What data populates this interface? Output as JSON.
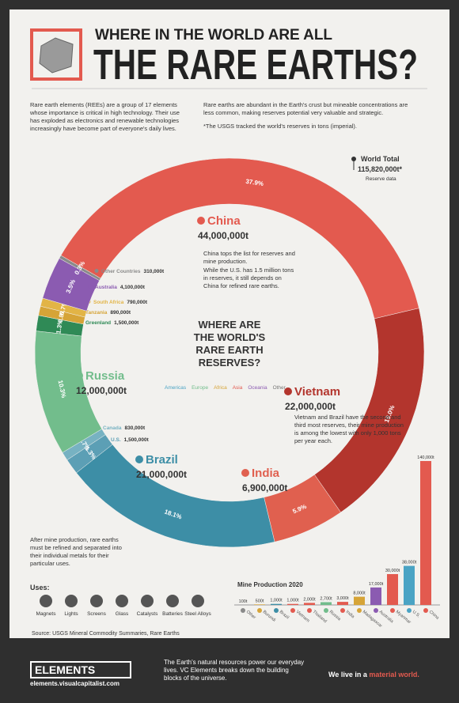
{
  "header": {
    "kicker": "WHERE IN THE WORLD ARE ALL",
    "title": "THE RARE EARTHS?"
  },
  "intro": {
    "left": "Rare earth elements (REEs) are a group of 17 elements whose importance is critical in high technology. Their use has exploded as electronics and renewable technologies increasingly have become part of everyone's daily lives.",
    "right": "Rare earths are abundant in the Earth's crust but mineable concentrations are less common, making reserves potential very valuable and strategic.",
    "note": "*The USGS tracked the world's reserves in tons (imperial)."
  },
  "chart_data": [
    {
      "type": "pie",
      "title": "WHERE ARE THE WORLD'S RARE EARTH RESERVES?",
      "total": {
        "name": "World Total",
        "value": 115820000,
        "label": "115,820,000t*",
        "note": "Reserve data"
      },
      "categories": [
        "China",
        "Vietnam",
        "India",
        "Brazil",
        "U.S.",
        "Canada",
        "Russia",
        "Greenland",
        "Tanzania",
        "South Africa",
        "Australia",
        "Other Countries"
      ],
      "values": [
        44000000,
        22000000,
        6900000,
        21000000,
        1500000,
        830000,
        12000000,
        1500000,
        890000,
        790000,
        4100000,
        310000
      ],
      "value_labels": [
        "44,000,000t",
        "22,000,000t",
        "6,900,000t",
        "21,000,000t",
        "1,500,000t",
        "830,000t",
        "12,000,000t",
        "1,500,000t",
        "890,000t",
        "790,000t",
        "4,100,000t",
        "310,000t"
      ],
      "shares": [
        {
          "value": 37.9,
          "label": "37.9%"
        },
        {
          "value": 19.0,
          "label": "19.0%"
        },
        {
          "value": 5.9,
          "label": "5.9%"
        },
        {
          "value": 18.1,
          "label": "18.1%"
        },
        {
          "value": 1.3,
          "label": "1.3%"
        },
        {
          "value": 0.7,
          "label": "0.7%"
        },
        {
          "value": 10.3,
          "label": "10.3%"
        },
        {
          "value": 1.3,
          "label": "1.3%"
        },
        {
          "value": 0.8,
          "label": "0.8%"
        },
        {
          "value": 0.7,
          "label": "0.7%"
        },
        {
          "value": 3.5,
          "label": "3.5%"
        },
        {
          "value": 0.3,
          "label": "0.3%"
        }
      ],
      "colors": [
        "#e35a4f",
        "#b3352d",
        "#e0604f",
        "#3d8ea6",
        "#5c9fb5",
        "#77b2c2",
        "#72bd8c",
        "#2f8a56",
        "#d6a437",
        "#e2b446",
        "#8b5bb1",
        "#8a8a8a"
      ],
      "region_legend": [
        {
          "name": "Americas",
          "color": "#4aa3c4"
        },
        {
          "name": "Europe",
          "color": "#72bd8c"
        },
        {
          "name": "Africa",
          "color": "#d6a437"
        },
        {
          "name": "Asia",
          "color": "#e35a4f"
        },
        {
          "name": "Oceania",
          "color": "#8b5bb1"
        },
        {
          "name": "Other",
          "color": "#777777"
        }
      ],
      "annotations": [
        "China tops the list for reserves and mine production.",
        "While the U.S. has 1.5 million tons in reserves, it still depends on China for refined rare earths.",
        "Vietnam and Brazil have the second and third most reserves, their mine production is among the lowest with only 1,000 tons per year each."
      ]
    },
    {
      "type": "bar",
      "title": "Mine Production 2020",
      "categories": [
        "Other",
        "Burundi",
        "Brazil",
        "Vietnam",
        "Thailand",
        "Russia",
        "India",
        "Madagascar",
        "Australia",
        "Myanmar",
        "U.S.",
        "China"
      ],
      "values": [
        100,
        500,
        1000,
        1000,
        2000,
        2700,
        3000,
        8000,
        17000,
        30000,
        38000,
        140000
      ],
      "value_labels": [
        "100t",
        "500t",
        "1,000t",
        "1,000t",
        "2,000t",
        "2,700t",
        "3,000t",
        "8,000t",
        "17,000t",
        "30,000t",
        "38,000t",
        "140,000t"
      ],
      "colors": [
        "#8a8a8a",
        "#d6a437",
        "#3d8ea6",
        "#e35a4f",
        "#e35a4f",
        "#72bd8c",
        "#e35a4f",
        "#d6a437",
        "#8b5bb1",
        "#e35a4f",
        "#4aa3c4",
        "#e35a4f"
      ]
    }
  ],
  "uses": {
    "intro": "After mine production, rare earths must be refined and separated into their individual metals for their particular uses.",
    "title": "Uses:",
    "items": [
      "Magnets",
      "Lights",
      "Screens",
      "Glass",
      "Catalysts",
      "Batteries",
      "Steel Alloys"
    ]
  },
  "source": "Source: USGS Mineral Commodity Summaries, Rare Earths",
  "footer": {
    "brand": "ELEMENTS",
    "url": "elements.visualcapitalist.com",
    "blurb": "The Earth's natural resources power our everyday lives. VC Elements breaks down the building blocks of the universe.",
    "tagline_start": "We live in a ",
    "tagline_end": "material world."
  }
}
